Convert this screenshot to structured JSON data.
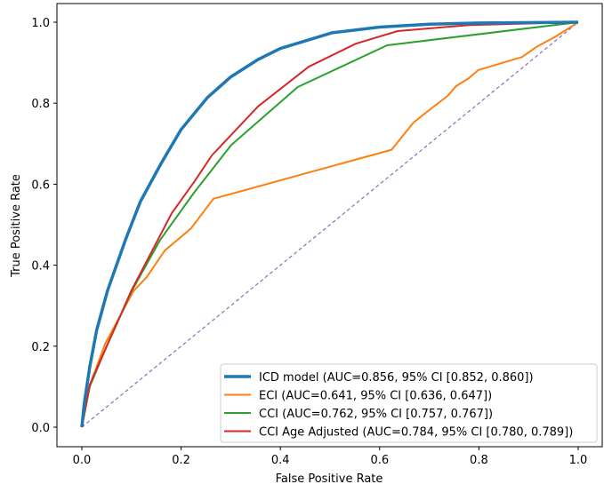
{
  "chart_data": {
    "type": "line",
    "title": "",
    "xlabel": "False Positive Rate",
    "ylabel": "True Positive Rate",
    "xlim": [
      -0.05,
      1.05
    ],
    "ylim": [
      -0.05,
      1.05
    ],
    "xticks": [
      "0.0",
      "0.2",
      "0.4",
      "0.6",
      "0.8",
      "1.0"
    ],
    "yticks": [
      "0.0",
      "0.2",
      "0.4",
      "0.6",
      "0.8",
      "1.0"
    ],
    "grid": false,
    "legend_position": "lower-right",
    "series": [
      {
        "name": "ICD model (AUC=0.856, 95% CI [0.852, 0.860])",
        "color": "#1f77b4",
        "width": "thick",
        "points": [
          [
            0,
            0
          ],
          [
            0.005,
            0.06
          ],
          [
            0.016,
            0.149
          ],
          [
            0.03,
            0.24
          ],
          [
            0.052,
            0.338
          ],
          [
            0.088,
            0.463
          ],
          [
            0.118,
            0.557
          ],
          [
            0.16,
            0.652
          ],
          [
            0.2,
            0.735
          ],
          [
            0.253,
            0.814
          ],
          [
            0.3,
            0.865
          ],
          [
            0.355,
            0.908
          ],
          [
            0.4,
            0.935
          ],
          [
            0.504,
            0.974
          ],
          [
            0.6,
            0.988
          ],
          [
            0.7,
            0.995
          ],
          [
            0.8,
            0.998
          ],
          [
            1,
            1
          ]
        ]
      },
      {
        "name": "ECI (AUC=0.641, 95% CI [0.636, 0.647])",
        "color": "#ff7f0e",
        "points": [
          [
            0,
            0
          ],
          [
            0.015,
            0.1
          ],
          [
            0.047,
            0.206
          ],
          [
            0.104,
            0.336
          ],
          [
            0.131,
            0.371
          ],
          [
            0.167,
            0.436
          ],
          [
            0.22,
            0.491
          ],
          [
            0.265,
            0.564
          ],
          [
            0.624,
            0.685
          ],
          [
            0.668,
            0.752
          ],
          [
            0.704,
            0.787
          ],
          [
            0.737,
            0.818
          ],
          [
            0.754,
            0.842
          ],
          [
            0.78,
            0.862
          ],
          [
            0.799,
            0.882
          ],
          [
            0.887,
            0.914
          ],
          [
            0.916,
            0.939
          ],
          [
            0.955,
            0.965
          ],
          [
            1,
            1
          ]
        ]
      },
      {
        "name": "CCI (AUC=0.762, 95% CI [0.757, 0.767])",
        "color": "#2ca02c",
        "points": [
          [
            0,
            0
          ],
          [
            0.016,
            0.1
          ],
          [
            0.05,
            0.2
          ],
          [
            0.1,
            0.335
          ],
          [
            0.158,
            0.463
          ],
          [
            0.226,
            0.579
          ],
          [
            0.301,
            0.697
          ],
          [
            0.435,
            0.84
          ],
          [
            0.615,
            0.943
          ],
          [
            1,
            1
          ]
        ]
      },
      {
        "name": "CCI Age Adjusted (AUC=0.784, 95% CI [0.780, 0.789])",
        "color": "#d62728",
        "points": [
          [
            0,
            0
          ],
          [
            0.016,
            0.105
          ],
          [
            0.1,
            0.338
          ],
          [
            0.181,
            0.528
          ],
          [
            0.226,
            0.605
          ],
          [
            0.262,
            0.671
          ],
          [
            0.355,
            0.792
          ],
          [
            0.457,
            0.89
          ],
          [
            0.552,
            0.947
          ],
          [
            0.636,
            0.978
          ],
          [
            0.78,
            0.993
          ],
          [
            1,
            1
          ]
        ]
      },
      {
        "color": "#9467bd",
        "style": "dashed",
        "points": [
          [
            0,
            0
          ],
          [
            1,
            1
          ]
        ]
      }
    ]
  }
}
